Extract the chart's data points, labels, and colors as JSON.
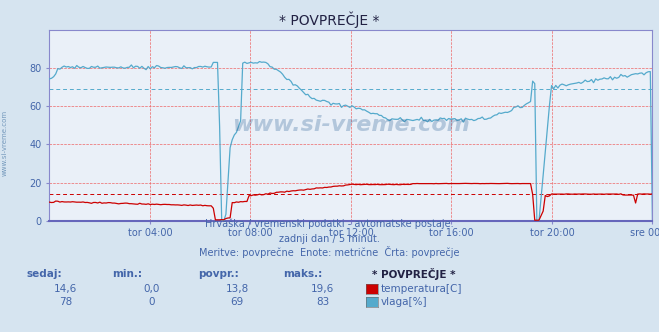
{
  "title": "* POVPREČJE *",
  "bg_color": "#d6e4f0",
  "plot_bg_color": "#eaf0f8",
  "text_color": "#4466aa",
  "watermark": "www.si-vreme.com",
  "subtitle1": "Hrvaška / vremenski podatki - avtomatske postaje.",
  "subtitle2": "zadnji dan / 5 minut.",
  "subtitle3": "Meritve: povprečne  Enote: metrične  Črta: povprečje",
  "xticklabels": [
    "tor 04:00",
    "tor 08:00",
    "tor 12:00",
    "tor 16:00",
    "tor 20:00",
    "sre 00:00"
  ],
  "xtick_fracs": [
    0.1667,
    0.3333,
    0.5,
    0.6667,
    0.8333,
    1.0
  ],
  "ylim": [
    0,
    100
  ],
  "yticks": [
    0,
    20,
    40,
    60,
    80
  ],
  "temp_color": "#cc0000",
  "humidity_color": "#55aacc",
  "avg_temp": 13.8,
  "avg_humidity": 69,
  "legend_title": "* POVPREČJE *",
  "legend_items": [
    {
      "label": "temperatura[C]",
      "color": "#cc0000"
    },
    {
      "label": "vlaga[%]",
      "color": "#55aacc"
    }
  ],
  "stats_headers": [
    "sedaj:",
    "min.:",
    "povpr.:",
    "maks.:"
  ],
  "temp_stats": [
    "14,6",
    "0,0",
    "13,8",
    "19,6"
  ],
  "hum_stats": [
    "78",
    "0",
    "69",
    "83"
  ]
}
